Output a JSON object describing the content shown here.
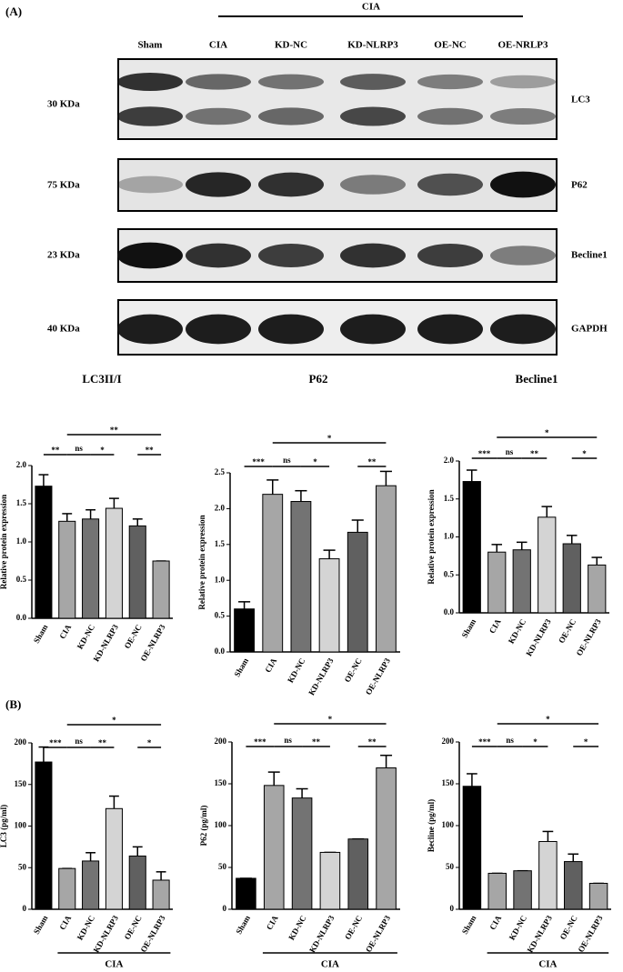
{
  "panels": [
    "(A)",
    "(B)"
  ],
  "blot": {
    "group_label": "CIA",
    "lanes": [
      "Sham",
      "CIA",
      "KD-NC",
      "KD-NLRP3",
      "OE-NC",
      "OE-NRLP3"
    ],
    "sizes": [
      "30 KDa",
      "75 KDa",
      "23 KDa",
      "40 KDa"
    ],
    "proteins": [
      "LC3",
      "P62",
      "Becline1",
      "GAPDH"
    ]
  },
  "chart_data": [
    {
      "type": "bar",
      "title": "LC3II/I",
      "y_label": "Relative protein expression",
      "categories": [
        "Sham",
        "CIA",
        "KD-NC",
        "KD-NLRP3",
        "OE-NC",
        "OE-NLRP3"
      ],
      "values": [
        1.73,
        1.27,
        1.3,
        1.44,
        1.21,
        0.75
      ],
      "errors": [
        0.15,
        0.1,
        0.12,
        0.13,
        0.09,
        0
      ],
      "colors": [
        "#000000",
        "#a6a6a6",
        "#737373",
        "#d4d4d4",
        "#606060",
        "#a6a6a6"
      ],
      "ylim": [
        0,
        2.0
      ],
      "yticks": [
        {
          "value": 0,
          "label": "0.0"
        },
        {
          "value": 0.5,
          "label": "0.5"
        },
        {
          "value": 1,
          "label": "1.0"
        },
        {
          "value": 1.5,
          "label": "1.5"
        },
        {
          "value": 2,
          "label": "2.0"
        }
      ],
      "significance": [
        {
          "label": "**",
          "between": [
            "Sham",
            "CIA"
          ]
        },
        {
          "label": "ns",
          "between": [
            "CIA",
            "KD-NC"
          ]
        },
        {
          "label": "*",
          "between": [
            "KD-NC",
            "KD-NLRP3"
          ]
        },
        {
          "label": "**",
          "between": [
            "OE-NC",
            "OE-NLRP3"
          ]
        },
        {
          "label": "**",
          "between": [
            "CIA",
            "OE-NLRP3"
          ]
        }
      ]
    },
    {
      "type": "bar",
      "title": "P62",
      "y_label": "Relative protein expression",
      "categories": [
        "Sham",
        "CIA",
        "KD-NC",
        "KD-NLRP3",
        "OE-NC",
        "OE-NLRP3"
      ],
      "values": [
        0.6,
        2.2,
        2.1,
        1.3,
        1.67,
        2.32
      ],
      "errors": [
        0.1,
        0.2,
        0.15,
        0.12,
        0.17,
        0.2
      ],
      "colors": [
        "#000000",
        "#a6a6a6",
        "#737373",
        "#d4d4d4",
        "#606060",
        "#a6a6a6"
      ],
      "ylim": [
        0,
        2.5
      ],
      "yticks": [
        {
          "value": 0,
          "label": "0.0"
        },
        {
          "value": 0.5,
          "label": "0.5"
        },
        {
          "value": 1,
          "label": "1.0"
        },
        {
          "value": 1.5,
          "label": "1.5"
        },
        {
          "value": 2,
          "label": "2.0"
        },
        {
          "value": 2.5,
          "label": "2.5"
        }
      ],
      "significance": [
        {
          "label": "***",
          "between": [
            "Sham",
            "CIA"
          ]
        },
        {
          "label": "ns",
          "between": [
            "CIA",
            "KD-NC"
          ]
        },
        {
          "label": "*",
          "between": [
            "KD-NC",
            "KD-NLRP3"
          ]
        },
        {
          "label": "**",
          "between": [
            "OE-NC",
            "OE-NLRP3"
          ]
        },
        {
          "label": "*",
          "between": [
            "CIA",
            "OE-NLRP3"
          ]
        }
      ]
    },
    {
      "type": "bar",
      "title": "Becline1",
      "y_label": "Relative protein expression",
      "categories": [
        "Sham",
        "CIA",
        "KD-NC",
        "KD-NLRP3",
        "OE-NC",
        "OE-NLRP3"
      ],
      "values": [
        1.73,
        0.8,
        0.83,
        1.26,
        0.91,
        0.63
      ],
      "errors": [
        0.15,
        0.1,
        0.1,
        0.14,
        0.11,
        0.1
      ],
      "colors": [
        "#000000",
        "#a6a6a6",
        "#737373",
        "#d4d4d4",
        "#606060",
        "#a6a6a6"
      ],
      "ylim": [
        0,
        2.0
      ],
      "yticks": [
        {
          "value": 0,
          "label": "0.0"
        },
        {
          "value": 0.5,
          "label": "0.5"
        },
        {
          "value": 1,
          "label": "1.0"
        },
        {
          "value": 1.5,
          "label": "1.5"
        },
        {
          "value": 2,
          "label": "2.0"
        }
      ],
      "significance": [
        {
          "label": "***",
          "between": [
            "Sham",
            "CIA"
          ]
        },
        {
          "label": "ns",
          "between": [
            "CIA",
            "KD-NC"
          ]
        },
        {
          "label": "**",
          "between": [
            "KD-NC",
            "KD-NLRP3"
          ]
        },
        {
          "label": "*",
          "between": [
            "OE-NC",
            "OE-NLRP3"
          ]
        },
        {
          "label": "*",
          "between": [
            "CIA",
            "OE-NLRP3"
          ]
        }
      ]
    },
    {
      "type": "bar",
      "y_label": "LC3 (pg/ml)",
      "group_label": "CIA",
      "categories": [
        "Sham",
        "CIA",
        "KD-NC",
        "KD-NLRP3",
        "OE-NC",
        "OE-NLRP3"
      ],
      "values": [
        177,
        49,
        58,
        121,
        64,
        35
      ],
      "errors": [
        18,
        0,
        10,
        15,
        11,
        10
      ],
      "colors": [
        "#000000",
        "#a6a6a6",
        "#737373",
        "#d4d4d4",
        "#606060",
        "#a6a6a6"
      ],
      "ylim": [
        0,
        200
      ],
      "yticks": [
        0,
        50,
        100,
        150,
        200
      ],
      "significance": [
        {
          "label": "***",
          "between": [
            "Sham",
            "CIA"
          ]
        },
        {
          "label": "ns",
          "between": [
            "CIA",
            "KD-NC"
          ]
        },
        {
          "label": "**",
          "between": [
            "KD-NC",
            "KD-NLRP3"
          ]
        },
        {
          "label": "*",
          "between": [
            "OE-NC",
            "OE-NLRP3"
          ]
        },
        {
          "label": "*",
          "between": [
            "CIA",
            "OE-NLRP3"
          ]
        }
      ]
    },
    {
      "type": "bar",
      "y_label": "P62 (pg/ml)",
      "group_label": "CIA",
      "categories": [
        "Sham",
        "CIA",
        "KD-NC",
        "KD-NLRP3",
        "OE-NC",
        "OE-NLRP3"
      ],
      "values": [
        37,
        148,
        133,
        68,
        84,
        169
      ],
      "errors": [
        0,
        16,
        11,
        0,
        0,
        15
      ],
      "colors": [
        "#000000",
        "#a6a6a6",
        "#737373",
        "#d4d4d4",
        "#606060",
        "#a6a6a6"
      ],
      "ylim": [
        0,
        200
      ],
      "yticks": [
        0,
        50,
        100,
        150,
        200
      ],
      "significance": [
        {
          "label": "***",
          "between": [
            "Sham",
            "CIA"
          ]
        },
        {
          "label": "ns",
          "between": [
            "CIA",
            "KD-NC"
          ]
        },
        {
          "label": "**",
          "between": [
            "KD-NC",
            "KD-NLRP3"
          ]
        },
        {
          "label": "**",
          "between": [
            "OE-NC",
            "OE-NLRP3"
          ]
        },
        {
          "label": "*",
          "between": [
            "CIA",
            "OE-NLRP3"
          ]
        }
      ]
    },
    {
      "type": "bar",
      "y_label": "Becline (pg/ml)",
      "group_label": "CIA",
      "categories": [
        "Sham",
        "CIA",
        "KD-NC",
        "KD-NLRP3",
        "OE-NC",
        "OE-NLRP3"
      ],
      "values": [
        147,
        43,
        46,
        81,
        57,
        31
      ],
      "errors": [
        15,
        0,
        0,
        12,
        9,
        0
      ],
      "colors": [
        "#000000",
        "#a6a6a6",
        "#737373",
        "#d4d4d4",
        "#606060",
        "#a6a6a6"
      ],
      "ylim": [
        0,
        200
      ],
      "yticks": [
        0,
        50,
        100,
        150,
        200
      ],
      "significance": [
        {
          "label": "***",
          "between": [
            "Sham",
            "CIA"
          ]
        },
        {
          "label": "ns",
          "between": [
            "CIA",
            "KD-NC"
          ]
        },
        {
          "label": "*",
          "between": [
            "KD-NC",
            "KD-NLRP3"
          ]
        },
        {
          "label": "*",
          "between": [
            "OE-NC",
            "OE-NLRP3"
          ]
        },
        {
          "label": "*",
          "between": [
            "CIA",
            "OE-NLRP3"
          ]
        }
      ]
    }
  ]
}
